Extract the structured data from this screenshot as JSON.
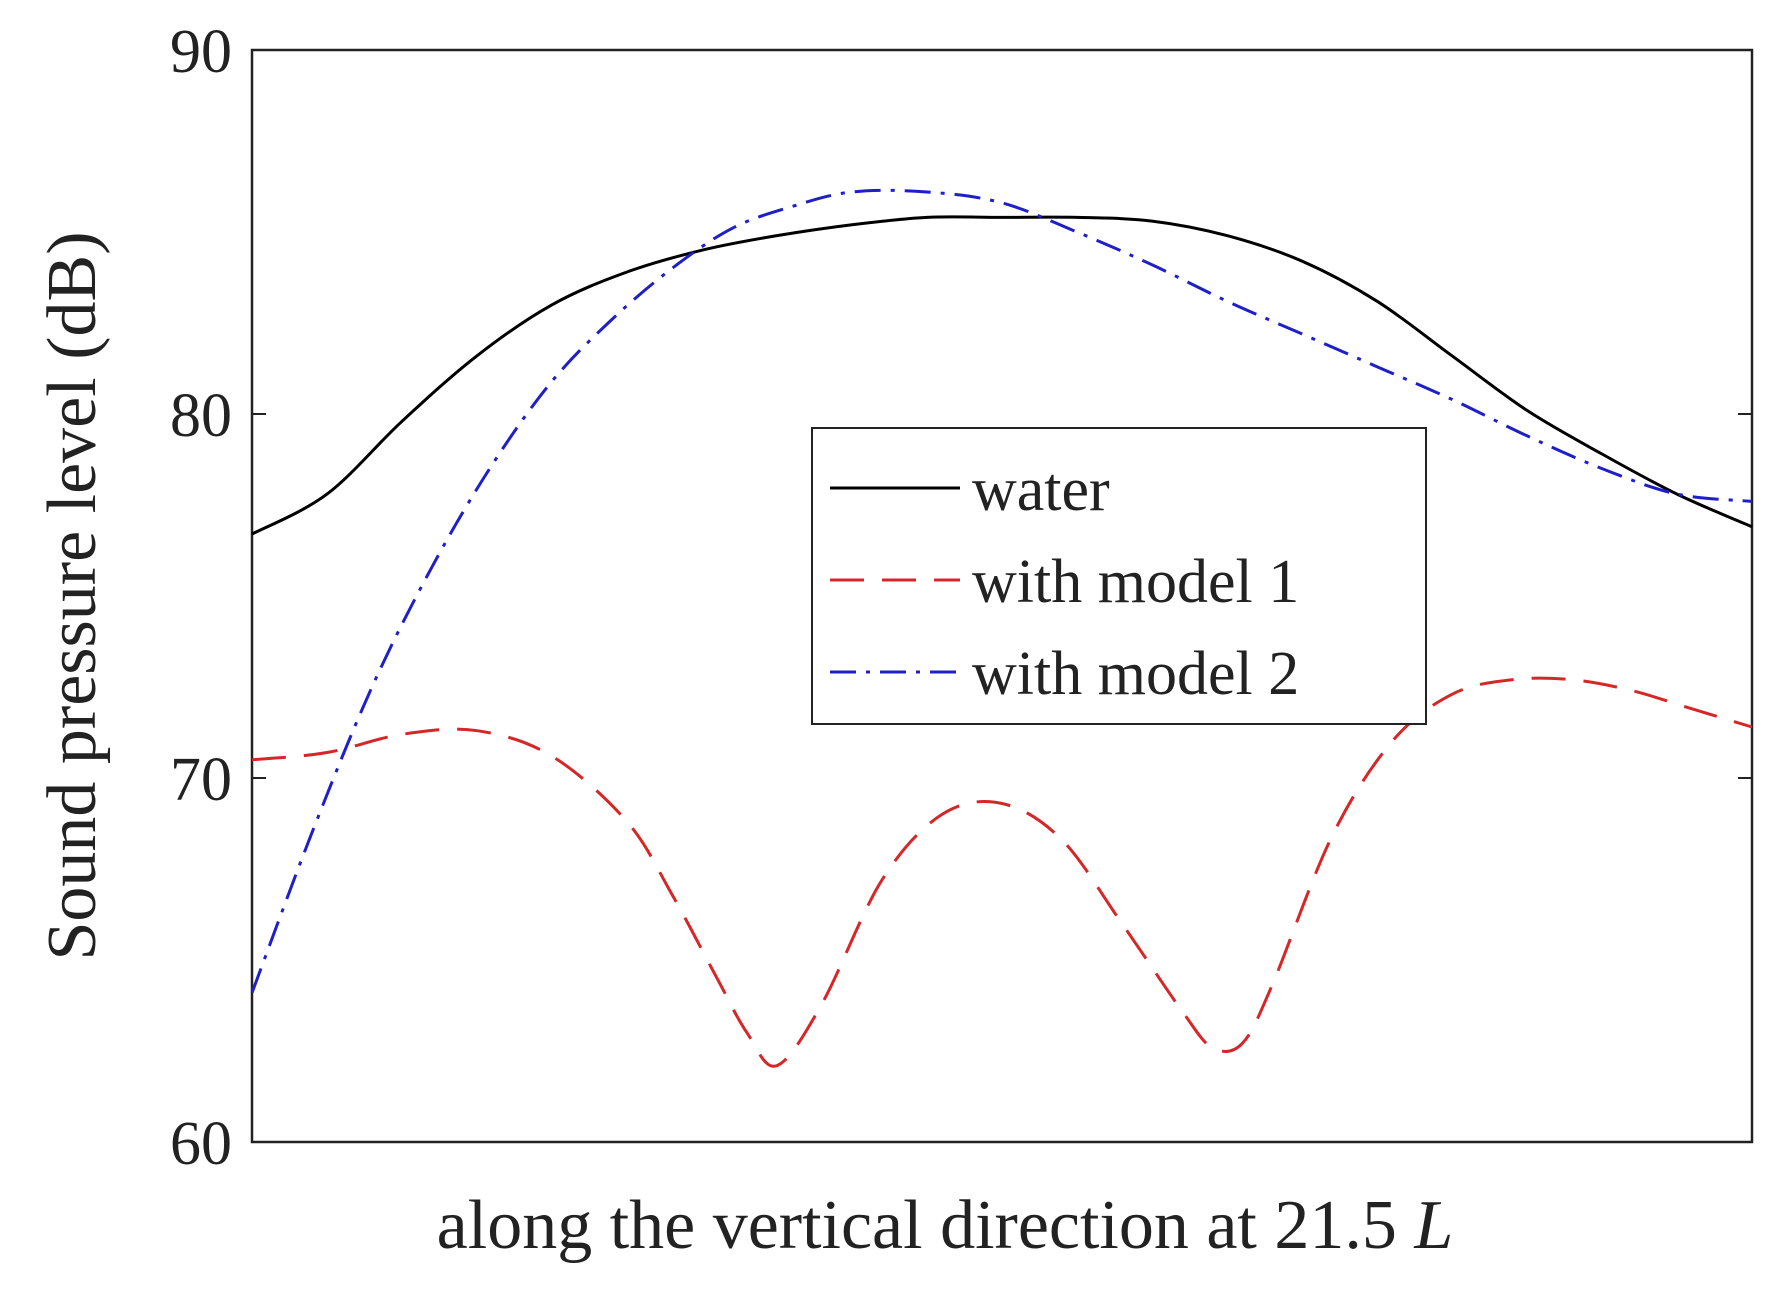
{
  "chart_data": {
    "type": "line",
    "xlabel": "along the vertical direction at 21.5",
    "xlabel_var": "L",
    "ylabel": "Sound pressure level (dB)",
    "xlim": [
      0,
      1
    ],
    "ylim": [
      60,
      90
    ],
    "yticks": [
      60,
      70,
      80,
      90
    ],
    "legend_position": "center",
    "grid": false,
    "series": [
      {
        "name": "water",
        "color": "#000000",
        "style": "solid",
        "x": [
          0,
          0.05,
          0.1,
          0.15,
          0.2,
          0.25,
          0.3,
          0.35,
          0.4,
          0.45,
          0.5,
          0.55,
          0.6,
          0.65,
          0.7,
          0.75,
          0.8,
          0.85,
          0.9,
          0.95,
          1
        ],
        "y": [
          76.7,
          77.8,
          79.8,
          81.6,
          83.0,
          83.9,
          84.5,
          84.9,
          85.2,
          85.4,
          85.4,
          85.4,
          85.3,
          84.9,
          84.2,
          83.1,
          81.6,
          80.1,
          78.9,
          77.8,
          76.9
        ]
      },
      {
        "name": "with model 1",
        "color": "#d62728",
        "style": "dashed",
        "x": [
          0,
          0.05,
          0.1,
          0.15,
          0.2,
          0.25,
          0.28,
          0.31,
          0.33,
          0.35,
          0.38,
          0.42,
          0.46,
          0.5,
          0.54,
          0.58,
          0.62,
          0.64,
          0.66,
          0.68,
          0.72,
          0.76,
          0.8,
          0.84,
          0.88,
          0.92,
          0.96,
          1
        ],
        "y": [
          70.5,
          70.7,
          71.2,
          71.3,
          70.6,
          68.8,
          66.8,
          64.5,
          63.0,
          62.1,
          63.8,
          67.2,
          69.0,
          69.3,
          68.3,
          66.0,
          63.6,
          62.6,
          62.7,
          64.3,
          68.4,
          71.0,
          72.3,
          72.7,
          72.7,
          72.4,
          71.9,
          71.4
        ]
      },
      {
        "name": "with model 2",
        "color": "#1f1fc8",
        "style": "dashdot",
        "x": [
          0,
          0.04,
          0.08,
          0.12,
          0.16,
          0.2,
          0.24,
          0.28,
          0.32,
          0.36,
          0.4,
          0.45,
          0.5,
          0.55,
          0.6,
          0.65,
          0.7,
          0.75,
          0.8,
          0.85,
          0.9,
          0.95,
          1
        ],
        "y": [
          64.1,
          68.5,
          72.5,
          75.8,
          78.6,
          80.9,
          82.6,
          84.0,
          85.1,
          85.7,
          86.1,
          86.1,
          85.8,
          85.0,
          84.1,
          83.1,
          82.2,
          81.3,
          80.4,
          79.4,
          78.5,
          77.8,
          77.6
        ]
      }
    ]
  }
}
